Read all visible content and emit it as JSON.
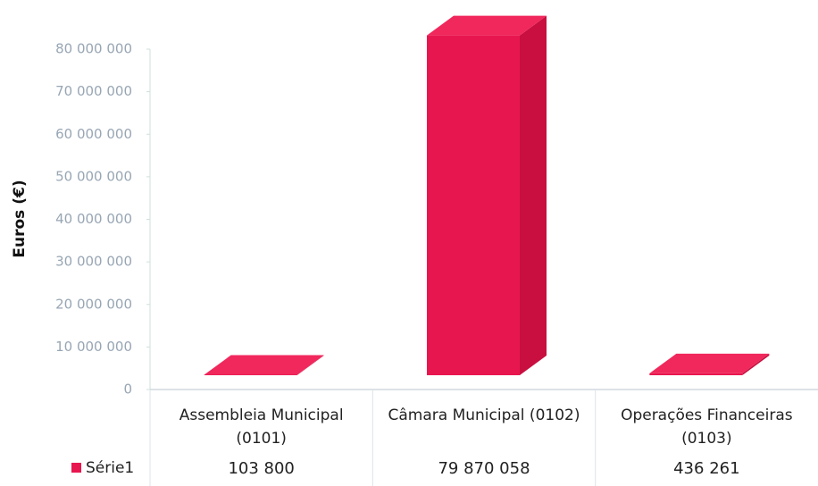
{
  "chart_data": {
    "type": "bar3d",
    "y_label": "Euros (€)",
    "categories": [
      "Assembleia Municipal (0101)",
      "Câmara Municipal (0102)",
      "Operações Financeiras (0103)"
    ],
    "series": [
      {
        "name": "Série1",
        "color": "#e8164f",
        "values": [
          103800,
          79870058,
          436261
        ],
        "value_labels": [
          "103 800",
          "79 870 058",
          "436 261"
        ]
      }
    ],
    "ylim": [
      0,
      80000000
    ],
    "yticks": [
      0,
      {
        "value": 10000000,
        "label": "10 000 000"
      },
      {
        "value": 20000000,
        "label": "20 000 000"
      },
      {
        "value": 30000000,
        "label": "30 000 000"
      },
      {
        "value": 40000000,
        "label": "40 000 000"
      },
      {
        "value": 50000000,
        "label": "50 000 000"
      },
      {
        "value": 60000000,
        "label": "60 000 000"
      },
      {
        "value": 70000000,
        "label": "70 000 000"
      },
      {
        "value": 80000000,
        "label": "80 000 000"
      }
    ]
  }
}
